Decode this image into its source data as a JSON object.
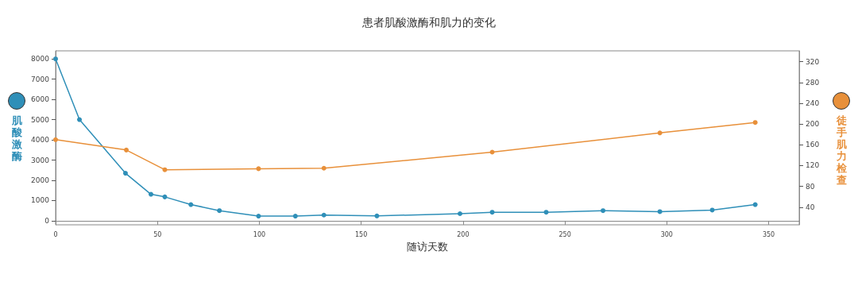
{
  "chart_data": {
    "type": "line",
    "title": "患者肌酸激酶和肌力的变化",
    "xlabel": "随访天数",
    "ylabel": "肌酸激酶",
    "y2label": "徒手肌力检查",
    "xlim": [
      0,
      365
    ],
    "xticks": [
      0,
      50,
      100,
      150,
      200,
      250,
      300,
      350
    ],
    "ylim": [
      -200,
      8400
    ],
    "yticks": [
      0,
      1000,
      2000,
      3000,
      4000,
      5000,
      6000,
      7000,
      8000
    ],
    "y2lim": [
      6,
      341
    ],
    "y2ticks": [
      40,
      80,
      120,
      160,
      200,
      240,
      280,
      320
    ],
    "marker": "circle",
    "line_style": "solid",
    "series": [
      {
        "color": "#2f8fb8",
        "x": [
          0,
          11.7,
          34.3,
          46.8,
          53.6,
          66.4,
          80.4,
          99.6,
          117.7,
          131.7,
          157.7,
          198.5,
          214.3,
          240.8,
          268.7,
          296.6,
          322.3,
          343.4
        ],
        "values": [
          8000,
          5000,
          2350,
          1310,
          1180,
          800,
          500,
          230,
          230,
          280,
          240,
          350,
          420,
          420,
          500,
          450,
          530,
          800
        ]
      },
      {
        "color": "#e8903a",
        "axis": "y2",
        "x": [
          0,
          34.7,
          53.6,
          99.6,
          131.7,
          214.3,
          296.6,
          343.4
        ],
        "values": [
          170,
          150,
          112,
          114,
          115,
          146,
          183,
          203
        ]
      }
    ]
  }
}
